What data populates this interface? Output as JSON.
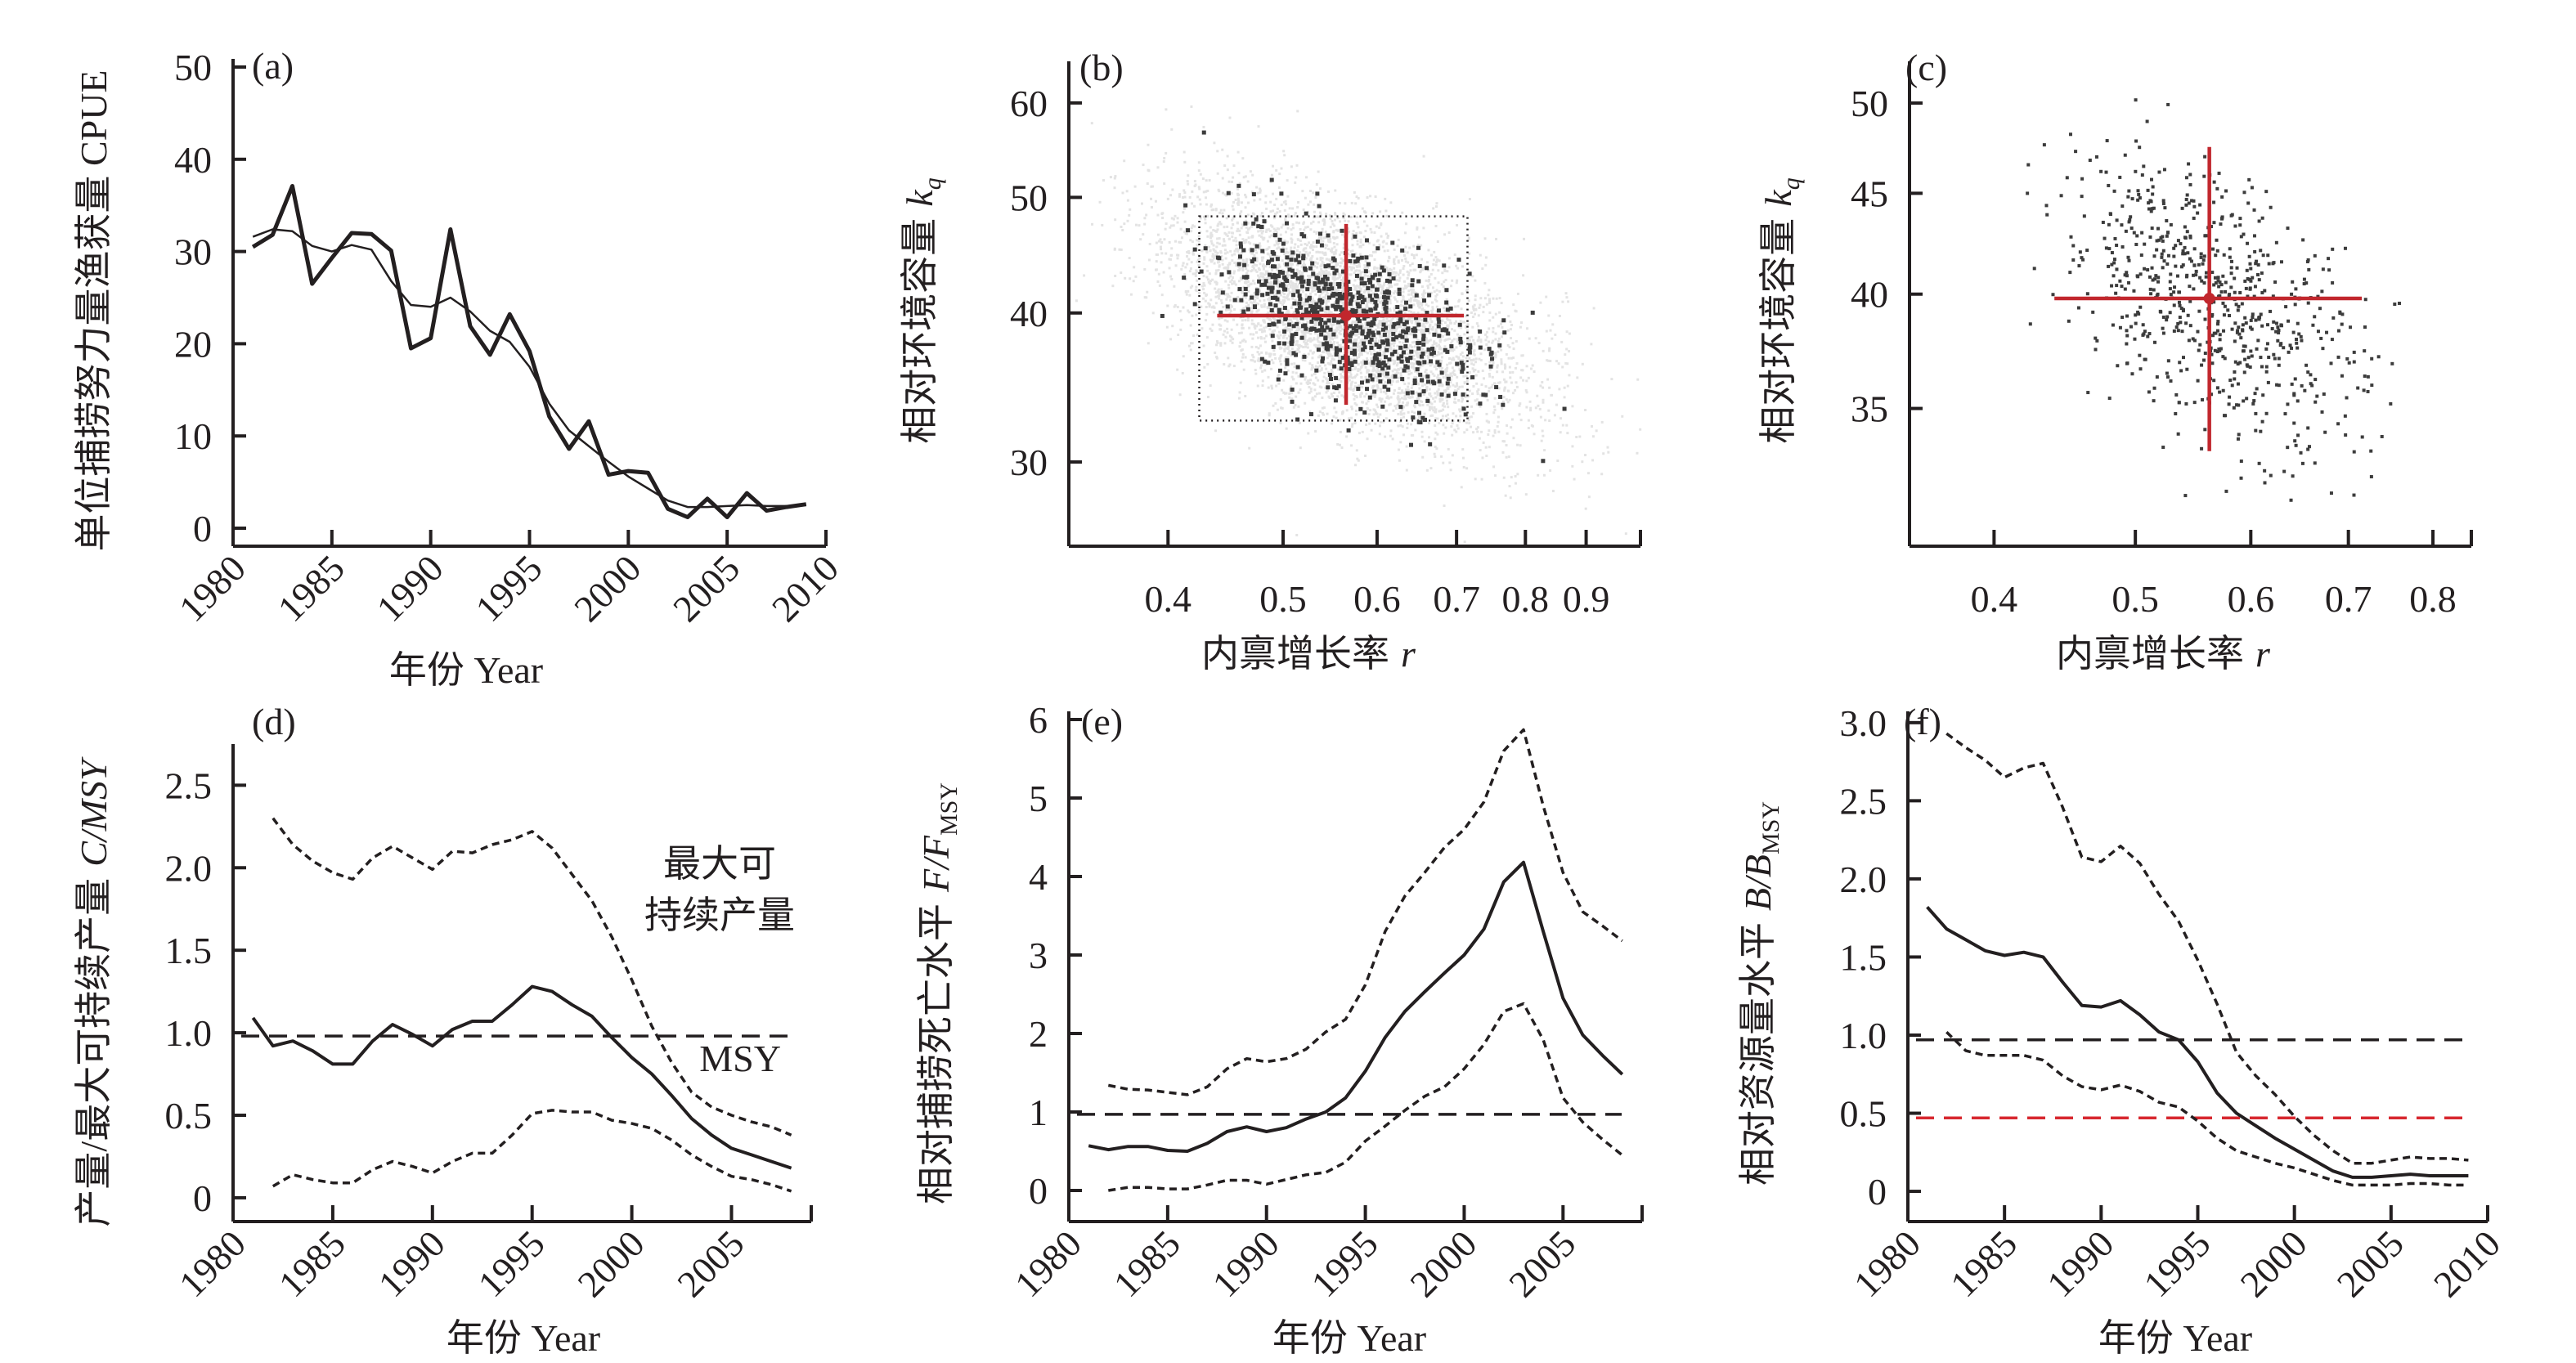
{
  "chart_data": [
    {
      "id": "a",
      "type": "line",
      "panel_label": "(a)",
      "ylabel": "单位捕捞努力量渔获量 CPUE",
      "xlabel": "年份 Year",
      "xlim": [
        1980,
        2010
      ],
      "ylim": [
        0,
        50
      ],
      "xticks": [
        1980,
        1985,
        1990,
        1995,
        2000,
        2005,
        2010
      ],
      "yticks": [
        0,
        10,
        20,
        30,
        40,
        50
      ],
      "xtick_labels": [
        "1980",
        "1985",
        "1990",
        "1995",
        "2000",
        "2005",
        "2010"
      ],
      "ytick_labels": [
        "0",
        "10",
        "20",
        "30",
        "40",
        "50"
      ],
      "series": [
        {
          "name": "observed",
          "style": "thick-solid",
          "x": [
            1981,
            1982,
            1983,
            1984,
            1985,
            1986,
            1987,
            1988,
            1989,
            1990,
            1991,
            1992,
            1993,
            1994,
            1995,
            1996,
            1997,
            1998,
            1999,
            2000,
            2001,
            2002,
            2003,
            2004,
            2005,
            2006,
            2007,
            2008,
            2009
          ],
          "y": [
            30.5,
            31.8,
            37.1,
            26.5,
            29.3,
            32.0,
            31.9,
            30.1,
            19.5,
            20.6,
            32.4,
            21.9,
            18.8,
            23.2,
            19.2,
            12.1,
            8.6,
            11.6,
            5.8,
            6.2,
            6.0,
            2.1,
            1.2,
            3.2,
            1.2,
            3.8,
            1.9,
            2.3,
            2.6
          ]
        },
        {
          "name": "fitted",
          "style": "thin-solid",
          "x": [
            1981,
            1982,
            1983,
            1984,
            1985,
            1986,
            1987,
            1988,
            1989,
            1990,
            1991,
            1992,
            1993,
            1994,
            1995,
            1996,
            1997,
            1998,
            1999,
            2000,
            2001,
            2002,
            2003,
            2004,
            2005,
            2006,
            2007,
            2008,
            2009
          ],
          "y": [
            31.6,
            32.4,
            32.2,
            30.6,
            30.0,
            30.7,
            30.2,
            26.8,
            24.2,
            24.0,
            25.0,
            23.5,
            21.4,
            20.2,
            17.5,
            13.5,
            10.6,
            8.9,
            7.2,
            5.6,
            4.3,
            3.0,
            2.3,
            2.3,
            2.4,
            2.5,
            2.4,
            2.4,
            2.5
          ]
        }
      ]
    },
    {
      "id": "b",
      "type": "scatter",
      "panel_label": "(b)",
      "ylabel": "相对环境容量",
      "ylabel_symbol": "k",
      "ylabel_subscript": "q",
      "xlabel": "内禀增长率",
      "xlabel_symbol": "r",
      "x_scale": "log",
      "y_scale": "log",
      "xlim": [
        0.33,
        1.0
      ],
      "ylim": [
        25.5,
        64
      ],
      "xticks": [
        0.4,
        0.5,
        0.6,
        0.7,
        0.8,
        0.9
      ],
      "yticks": [
        30,
        40,
        50,
        60
      ],
      "xtick_labels": [
        "0.4",
        "0.5",
        "0.6",
        "0.7",
        "0.8",
        "0.9"
      ],
      "ytick_labels": [
        "30",
        "40",
        "50",
        "60"
      ],
      "centroid": {
        "r": 0.565,
        "k": 39.8
      },
      "cross_x_range": [
        0.44,
        0.71
      ],
      "cross_y_range": [
        33.5,
        47.5
      ],
      "box_x_range": [
        0.425,
        0.715
      ],
      "box_y_range": [
        32.5,
        48.2
      ],
      "prior_cloud": {
        "r_mean": 0.57,
        "k_mean": 40,
        "note_color": "#e6e6e6"
      },
      "colors": {
        "cross": "#c1272d",
        "points": "#3c3c3c",
        "cloud": "#e3e3e3"
      }
    },
    {
      "id": "c",
      "type": "scatter",
      "panel_label": "(c)",
      "ylabel": "相对环境容量",
      "ylabel_symbol": "k",
      "ylabel_subscript": "q",
      "xlabel": "内禀增长率",
      "xlabel_symbol": "r",
      "x_scale": "log",
      "y_scale": "log",
      "xlim": [
        0.35,
        0.85
      ],
      "ylim": [
        29.8,
        52
      ],
      "xticks": [
        0.4,
        0.5,
        0.6,
        0.7,
        0.8
      ],
      "yticks": [
        35,
        40,
        45,
        50
      ],
      "xtick_labels": [
        "0.4",
        "0.5",
        "0.6",
        "0.7",
        "0.8"
      ],
      "ytick_labels": [
        "35",
        "40",
        "45",
        "50"
      ],
      "centroid": {
        "r": 0.562,
        "k": 39.8
      },
      "cross_x_range": [
        0.44,
        0.715
      ],
      "cross_y_range": [
        33.3,
        47.5
      ],
      "colors": {
        "cross": "#c1272d",
        "points": "#3c3c3c"
      }
    },
    {
      "id": "d",
      "type": "line",
      "panel_label": "(d)",
      "ylabel": "产量/最大可持续产量",
      "ylabel_symbol": "C/MSY",
      "xlabel": "年份 Year",
      "xlim": [
        1980,
        2009
      ],
      "ylim": [
        -0.05,
        2.7
      ],
      "xticks": [
        1980,
        1985,
        1990,
        1995,
        2000,
        2005
      ],
      "yticks": [
        0,
        0.5,
        1.0,
        1.5,
        2.0,
        2.5
      ],
      "xtick_labels": [
        "1980",
        "1985",
        "1990",
        "1995",
        "2000",
        "2005"
      ],
      "ytick_labels": [
        "0",
        "0.5",
        "1.0",
        "1.5",
        "2.0",
        "2.5"
      ],
      "annotation_lines": [
        "最大可",
        "持续产量"
      ],
      "annotation_msy": "MSY",
      "reference_line": {
        "y": 0.98,
        "style": "dashed"
      },
      "series": [
        {
          "name": "median",
          "style": "solid",
          "x": [
            1981,
            1982,
            1983,
            1984,
            1985,
            1986,
            1987,
            1988,
            1989,
            1990,
            1991,
            1992,
            1993,
            1994,
            1995,
            1996,
            1997,
            1998,
            1999,
            2000,
            2001,
            2002,
            2003,
            2004,
            2005,
            2006,
            2007,
            2008
          ],
          "y": [
            1.09,
            0.92,
            0.95,
            0.89,
            0.81,
            0.81,
            0.95,
            1.05,
            0.99,
            0.92,
            1.02,
            1.07,
            1.07,
            1.17,
            1.28,
            1.25,
            1.17,
            1.1,
            0.97,
            0.85,
            0.75,
            0.62,
            0.48,
            0.38,
            0.3,
            0.26,
            0.22,
            0.18
          ]
        },
        {
          "name": "upper",
          "style": "dotted",
          "x": [
            1982,
            1983,
            1984,
            1985,
            1986,
            1987,
            1988,
            1989,
            1990,
            1991,
            1992,
            1993,
            1994,
            1995,
            1996,
            1997,
            1998,
            1999,
            2000,
            2001,
            2002,
            2003,
            2004,
            2005,
            2006,
            2007,
            2008
          ],
          "y": [
            2.3,
            2.14,
            2.04,
            1.97,
            1.93,
            2.06,
            2.13,
            2.06,
            1.99,
            2.1,
            2.09,
            2.14,
            2.17,
            2.22,
            2.12,
            1.96,
            1.8,
            1.58,
            1.32,
            1.04,
            0.82,
            0.64,
            0.55,
            0.5,
            0.46,
            0.43,
            0.38
          ]
        },
        {
          "name": "lower",
          "style": "dotted",
          "x": [
            1982,
            1983,
            1984,
            1985,
            1986,
            1987,
            1988,
            1989,
            1990,
            1991,
            1992,
            1993,
            1994,
            1995,
            1996,
            1997,
            1998,
            1999,
            2000,
            2001,
            2002,
            2003,
            2004,
            2005,
            2006,
            2007,
            2008
          ],
          "y": [
            0.07,
            0.14,
            0.11,
            0.09,
            0.09,
            0.17,
            0.22,
            0.19,
            0.15,
            0.22,
            0.27,
            0.27,
            0.38,
            0.51,
            0.53,
            0.52,
            0.52,
            0.47,
            0.45,
            0.42,
            0.35,
            0.26,
            0.19,
            0.13,
            0.11,
            0.08,
            0.04
          ]
        }
      ]
    },
    {
      "id": "e",
      "type": "line",
      "panel_label": "(e)",
      "ylabel": "相对捕捞死亡水平",
      "ylabel_symbol": "F/F",
      "ylabel_subscript": "MSY",
      "xlabel": "年份 Year",
      "xlim": [
        1980,
        2009
      ],
      "ylim": [
        -0.25,
        6.0
      ],
      "xticks": [
        1980,
        1985,
        1990,
        1995,
        2000,
        2005
      ],
      "yticks": [
        0,
        1,
        2,
        3,
        4,
        5,
        6
      ],
      "xtick_labels": [
        "1980",
        "1985",
        "1990",
        "1995",
        "2000",
        "2005"
      ],
      "ytick_labels": [
        "0",
        "1",
        "2",
        "3",
        "4",
        "5",
        "6"
      ],
      "reference_line": {
        "y": 0.97,
        "style": "dashed"
      },
      "series": [
        {
          "name": "median",
          "style": "solid",
          "x": [
            1981,
            1982,
            1983,
            1984,
            1985,
            1986,
            1987,
            1988,
            1989,
            1990,
            1991,
            1992,
            1993,
            1994,
            1995,
            1996,
            1997,
            1998,
            1999,
            2000,
            2001,
            2002,
            2003,
            2004,
            2005,
            2006,
            2007,
            2008
          ],
          "y": [
            0.57,
            0.52,
            0.56,
            0.56,
            0.51,
            0.5,
            0.6,
            0.75,
            0.81,
            0.75,
            0.8,
            0.91,
            1.0,
            1.18,
            1.52,
            1.95,
            2.28,
            2.53,
            2.77,
            3.0,
            3.33,
            3.93,
            4.18,
            3.3,
            2.45,
            1.98,
            1.72,
            1.48
          ]
        },
        {
          "name": "upper",
          "style": "dotted",
          "x": [
            1982,
            1983,
            1984,
            1985,
            1986,
            1987,
            1988,
            1989,
            1990,
            1991,
            1992,
            1993,
            1994,
            1995,
            1996,
            1997,
            1998,
            1999,
            2000,
            2001,
            2002,
            2003,
            2004,
            2005,
            2006,
            2007,
            2008
          ],
          "y": [
            1.34,
            1.29,
            1.28,
            1.25,
            1.22,
            1.32,
            1.55,
            1.68,
            1.64,
            1.68,
            1.8,
            2.02,
            2.18,
            2.62,
            3.3,
            3.75,
            4.05,
            4.37,
            4.6,
            4.95,
            5.6,
            5.87,
            4.9,
            4.05,
            3.55,
            3.37,
            3.18
          ]
        },
        {
          "name": "lower",
          "style": "dotted",
          "x": [
            1982,
            1983,
            1984,
            1985,
            1986,
            1987,
            1988,
            1989,
            1990,
            1991,
            1992,
            1993,
            1994,
            1995,
            1996,
            1997,
            1998,
            1999,
            2000,
            2001,
            2002,
            2003,
            2004,
            2005,
            2006,
            2007,
            2008
          ],
          "y": [
            0.0,
            0.04,
            0.04,
            0.02,
            0.02,
            0.07,
            0.13,
            0.13,
            0.08,
            0.14,
            0.2,
            0.23,
            0.36,
            0.63,
            0.82,
            1.02,
            1.2,
            1.32,
            1.55,
            1.86,
            2.28,
            2.38,
            1.92,
            1.18,
            0.87,
            0.65,
            0.45
          ]
        }
      ]
    },
    {
      "id": "f",
      "type": "line",
      "panel_label": "(f)",
      "ylabel": "相对资源量水平",
      "ylabel_symbol": "B/B",
      "ylabel_subscript": "MSY",
      "xlabel": "年份 Year",
      "xlim": [
        1980,
        2010
      ],
      "ylim": [
        -0.12,
        3.02
      ],
      "xticks": [
        1980,
        1985,
        1990,
        1995,
        2000,
        2005,
        2010
      ],
      "yticks": [
        0,
        0.5,
        1.0,
        1.5,
        2.0,
        2.5,
        3.0
      ],
      "xtick_labels": [
        "1980",
        "1985",
        "1990",
        "1995",
        "2000",
        "2005",
        "2010"
      ],
      "ytick_labels": [
        "0",
        "0.5",
        "1.0",
        "1.5",
        "2.0",
        "2.5",
        "3.0"
      ],
      "reference_lines": [
        {
          "y": 0.97,
          "style": "dashed",
          "color": "#231f20"
        },
        {
          "y": 0.47,
          "style": "dashed",
          "color": "#d7282f"
        }
      ],
      "series": [
        {
          "name": "median",
          "style": "solid",
          "x": [
            1981,
            1982,
            1983,
            1984,
            1985,
            1986,
            1987,
            1988,
            1989,
            1990,
            1991,
            1992,
            1993,
            1994,
            1995,
            1996,
            1997,
            1998,
            1999,
            2000,
            2001,
            2002,
            2003,
            2004,
            2005,
            2006,
            2007,
            2008,
            2009
          ],
          "y": [
            1.82,
            1.68,
            1.61,
            1.54,
            1.51,
            1.53,
            1.5,
            1.34,
            1.19,
            1.18,
            1.22,
            1.13,
            1.02,
            0.97,
            0.83,
            0.63,
            0.5,
            0.42,
            0.34,
            0.27,
            0.2,
            0.13,
            0.09,
            0.09,
            0.1,
            0.11,
            0.1,
            0.1,
            0.1
          ]
        },
        {
          "name": "upper",
          "style": "dotted",
          "x": [
            1982,
            1983,
            1984,
            1985,
            1986,
            1987,
            1988,
            1989,
            1990,
            1991,
            1992,
            1993,
            1994,
            1995,
            1996,
            1997,
            1998,
            1999,
            2000,
            2001,
            2002,
            2003,
            2004,
            2005,
            2006,
            2007,
            2008,
            2009
          ],
          "y": [
            2.93,
            2.84,
            2.76,
            2.65,
            2.71,
            2.74,
            2.46,
            2.14,
            2.11,
            2.21,
            2.1,
            1.9,
            1.73,
            1.48,
            1.2,
            0.89,
            0.74,
            0.62,
            0.48,
            0.36,
            0.26,
            0.18,
            0.18,
            0.2,
            0.22,
            0.21,
            0.21,
            0.2
          ]
        },
        {
          "name": "lower",
          "style": "dotted",
          "x": [
            1982,
            1983,
            1984,
            1985,
            1986,
            1987,
            1988,
            1989,
            1990,
            1991,
            1992,
            1993,
            1994,
            1995,
            1996,
            1997,
            1998,
            1999,
            2000,
            2001,
            2002,
            2003,
            2004,
            2005,
            2006,
            2007,
            2008,
            2009
          ],
          "y": [
            1.02,
            0.9,
            0.87,
            0.87,
            0.87,
            0.84,
            0.74,
            0.67,
            0.65,
            0.68,
            0.64,
            0.57,
            0.54,
            0.45,
            0.34,
            0.26,
            0.22,
            0.18,
            0.15,
            0.11,
            0.07,
            0.04,
            0.04,
            0.04,
            0.05,
            0.05,
            0.04,
            0.04
          ]
        }
      ]
    }
  ]
}
